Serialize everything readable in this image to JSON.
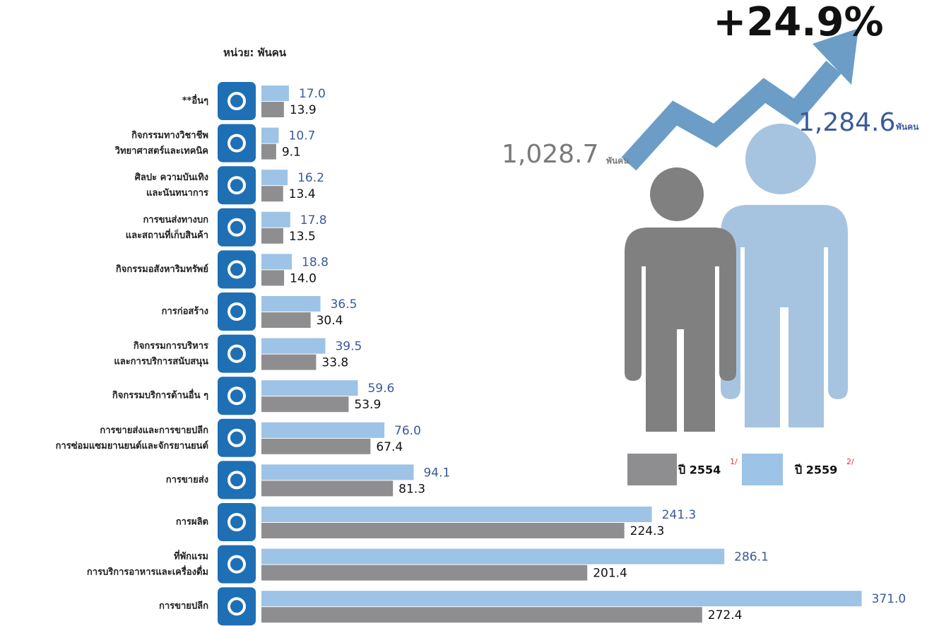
{
  "chart_data": {
    "type": "bar",
    "orientation": "horizontal",
    "subtitle": "หน่วย: พันคน",
    "categories": [
      "**อื่นๆ",
      "กิจกรรมทางวิชาชีพ\nวิทยาศาสตร์และเทคนิค",
      "ศิลปะ ความบันเทิง\nและนันทนาการ",
      "การขนส่งทางบก\nและสถานที่เก็บสินค้า",
      "กิจกรรมอสังหาริมทรัพย์",
      "การก่อสร้าง",
      "กิจกรรมการบริหาร\nและการบริการสนับสนุน",
      "กิจกรรมบริการด้านอื่น ๆ",
      "การขายส่งและการขายปลีก\nการซ่อมแซมยานยนต์และจักรยานยนต์",
      "การขายส่ง",
      "การผลิต",
      "ที่พักแรม\nการบริการอาหารและเครื่องดื่ม",
      "การขายปลีก"
    ],
    "series": [
      {
        "name": "ปี 2559",
        "note": "2/",
        "color": "#9dc3e6",
        "label_color": "#3a5a9b",
        "values": [
          17.0,
          10.7,
          16.2,
          17.8,
          18.8,
          36.5,
          39.5,
          59.6,
          76.0,
          94.1,
          241.3,
          286.1,
          371.0
        ],
        "value_labels": [
          "17.0",
          "10.7",
          "16.2",
          "17.8",
          "18.8",
          "36.5",
          "39.5",
          "59.6",
          "76.0",
          "94.1",
          "241.3",
          "286.1",
          "371.0"
        ]
      },
      {
        "name": "ปี 2554",
        "note": "1/",
        "color": "#8e8e90",
        "label_color": "#111111",
        "values": [
          13.9,
          9.1,
          13.4,
          13.5,
          14.0,
          30.4,
          33.8,
          53.9,
          67.4,
          81.3,
          224.3,
          201.4,
          272.4
        ],
        "value_labels": [
          "13.9",
          "9.1",
          "13.4",
          "13.5",
          "14.0",
          "30.4",
          "33.8",
          "53.9",
          "67.4",
          "81.3",
          "224.3",
          "201.4",
          "272.4"
        ]
      }
    ],
    "annotations": {
      "growth": "+24.9%",
      "total_2559": "1,284.6",
      "total_2554": "1,028.7",
      "unit": "พันคน"
    }
  }
}
